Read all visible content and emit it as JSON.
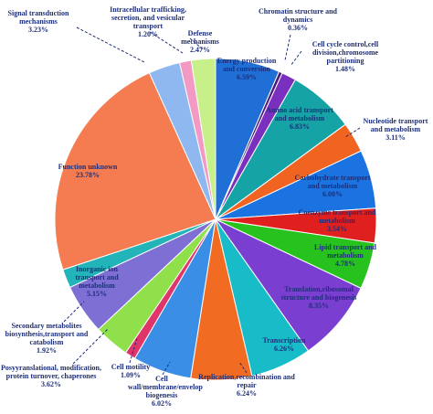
{
  "chart_data": {
    "type": "pie",
    "categories": [
      "Energy production and conversion",
      "Chromatin structure and dynamics",
      "Cell cycle control,cell division,chromosome partitioning",
      "Amino acid transport and metabolism",
      "Nucleotide transport and metabolism",
      "Carbohydrate transport and metabolism",
      "Coenzyme transport and metabolism",
      "Lipid transport and metabolism",
      "Translation,ribosomal structure and biogenesis",
      "Transcription",
      "Replication,recombination and repair",
      "Cell wall/membrane/envelop biogenesis",
      "Cell motility",
      "Posyyranslational, modification, protein turnover, chaperones",
      "Inorganic ion transport and metabolism",
      "Secondary metabolites biosynthesis,transport and catabolism",
      "Function unknown",
      "Signal transduction mechanisms",
      "Intracellular trafficking, secretion, and vesicular transport",
      "Defense mechanisms"
    ],
    "values": [
      6.59,
      0.36,
      1.48,
      6.83,
      3.11,
      6.0,
      3.54,
      4.78,
      8.35,
      6.26,
      6.24,
      6.02,
      1.09,
      3.62,
      5.15,
      1.92,
      23.78,
      3.23,
      1.2,
      2.47
    ],
    "value_labels": [
      "6.59%",
      "0.36%",
      "1.48%",
      "6.83%",
      "3.11%",
      "6.00%",
      "3.54%",
      "4.78%",
      "8.35%",
      "6.26%",
      "6.24%",
      "6.02%",
      "1.09%",
      "3.62%",
      "5.15%",
      "1.92%",
      "23.78%",
      "3.23%",
      "1.20%",
      "2.47%"
    ],
    "colors": [
      "#1f6fd6",
      "#4b1a7a",
      "#7b2fbf",
      "#16a3a6",
      "#f06321",
      "#1a73e0",
      "#e0201e",
      "#27c21d",
      "#7a3fd0",
      "#18bcc9",
      "#f26b22",
      "#3a8ee6",
      "#e0356a",
      "#8fe04a",
      "#7d6fd4",
      "#22b4b8",
      "#f47c50",
      "#8fb8f0",
      "#f29ac4",
      "#c7f08a"
    ]
  }
}
